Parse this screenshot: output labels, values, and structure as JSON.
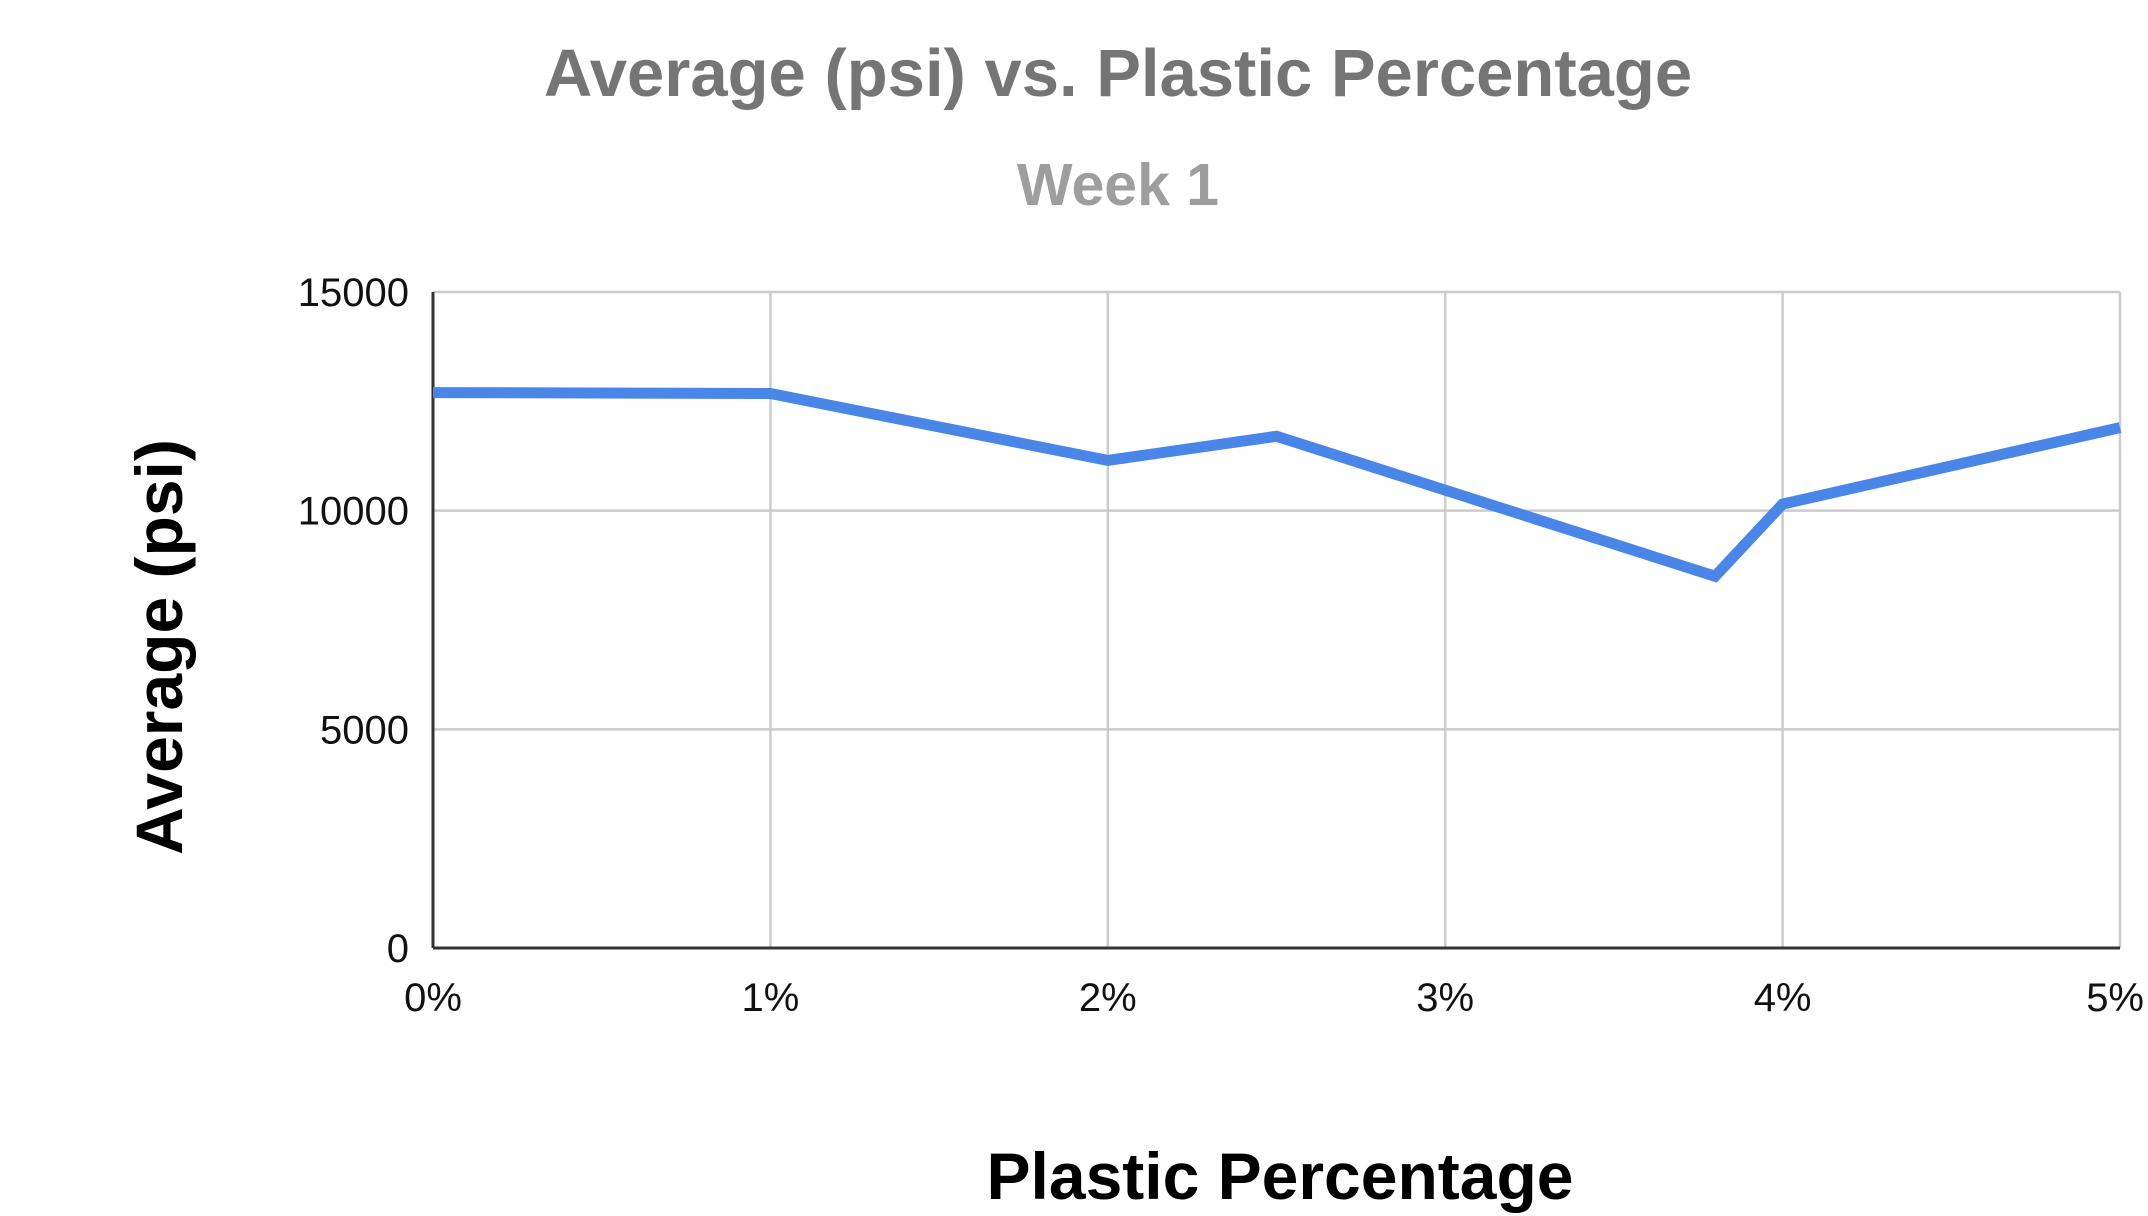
{
  "chart_data": {
    "type": "line",
    "title": "Average (psi) vs. Plastic Percentage",
    "subtitle": "Week 1",
    "xlabel": "Plastic Percentage",
    "ylabel": "Average (psi)",
    "xlim": [
      0,
      5
    ],
    "ylim": [
      0,
      15000
    ],
    "x_ticks": [
      {
        "value": 0,
        "label": "0%"
      },
      {
        "value": 1,
        "label": "1%"
      },
      {
        "value": 2,
        "label": "2%"
      },
      {
        "value": 3,
        "label": "3%"
      },
      {
        "value": 4,
        "label": "4%"
      },
      {
        "value": 5,
        "label": "5%"
      }
    ],
    "y_ticks": [
      {
        "value": 0,
        "label": "0"
      },
      {
        "value": 5000,
        "label": "5000"
      },
      {
        "value": 10000,
        "label": "10000"
      },
      {
        "value": 15000,
        "label": "15000"
      }
    ],
    "grid": true,
    "legend": "none",
    "series": [
      {
        "color": "#4a86e8",
        "points": [
          {
            "x": 0,
            "y": 12700
          },
          {
            "x": 1,
            "y": 12680
          },
          {
            "x": 2,
            "y": 11150
          },
          {
            "x": 2.5,
            "y": 11700
          },
          {
            "x": 3.8,
            "y": 8500
          },
          {
            "x": 4,
            "y": 10150
          },
          {
            "x": 5,
            "y": 11900
          }
        ]
      }
    ]
  }
}
